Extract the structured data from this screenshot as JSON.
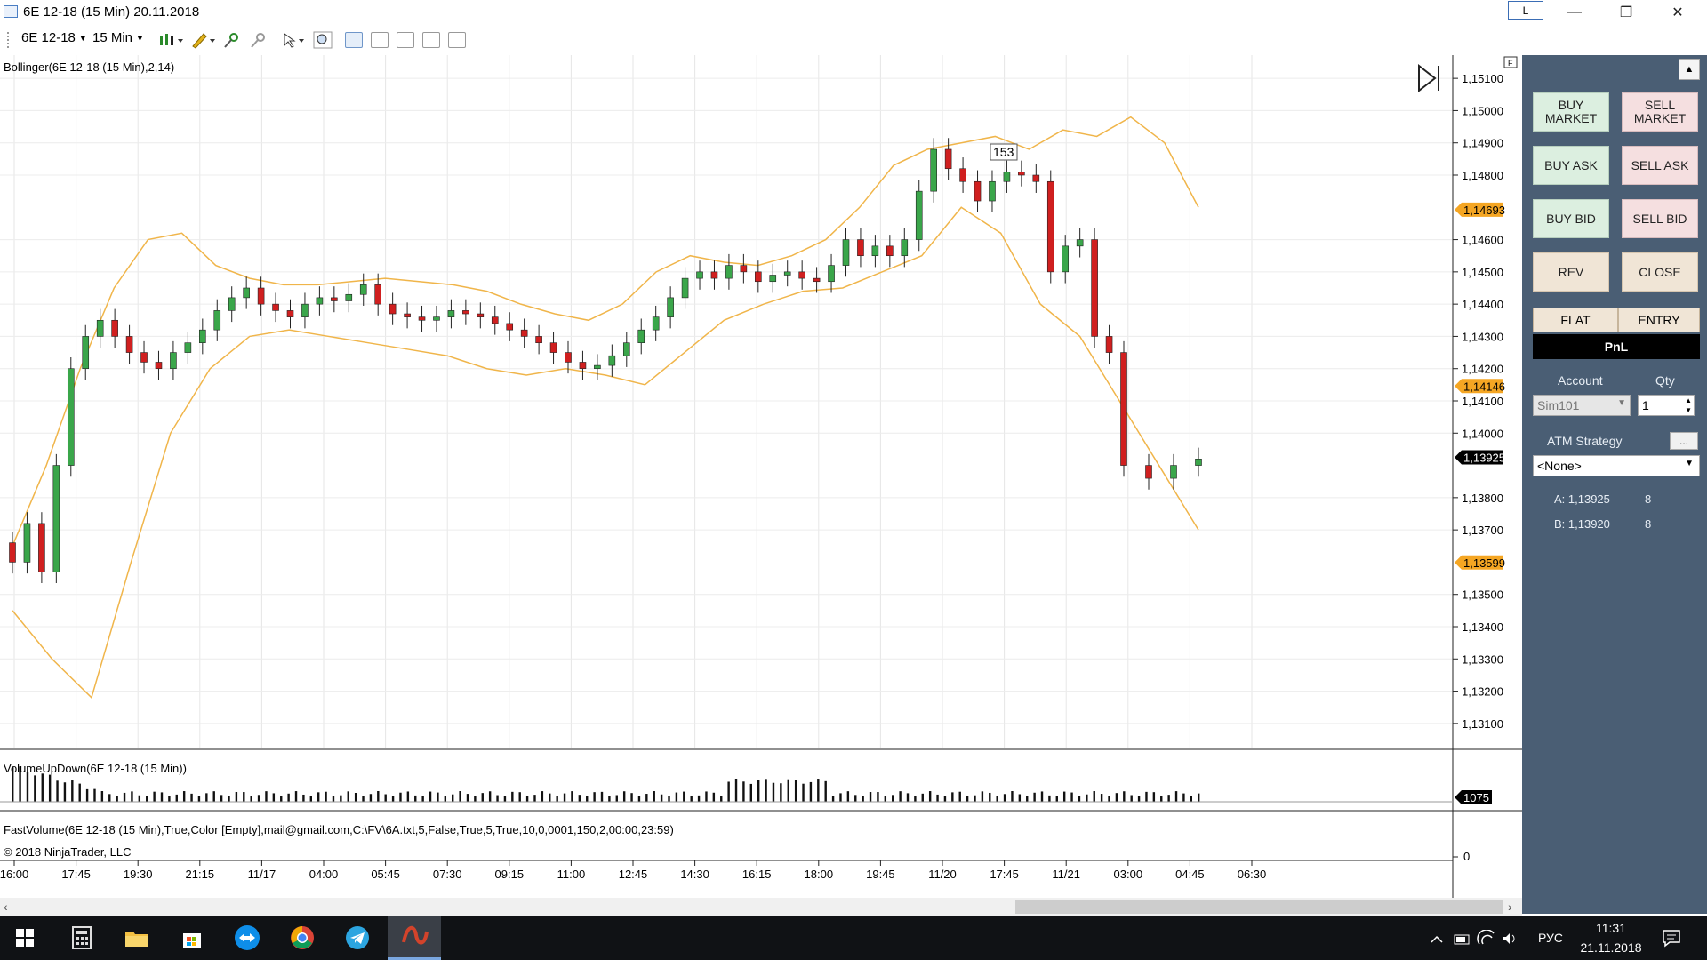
{
  "window": {
    "title": "6E 12-18 (15 Min)  20.11.2018",
    "layout_button": "L",
    "minimize": "—",
    "restore": "❐",
    "close": "✕"
  },
  "toolbar": {
    "instrument": "6E 12-18",
    "interval": "15 Min"
  },
  "chart": {
    "indicator_label": "Bollinger(6E 12-18 (15 Min),2,14)",
    "volume_label": "VolumeUpDown(6E 12-18 (15 Min))",
    "fastvolume_label": "FastVolume(6E 12-18 (15 Min),True,Color [Empty],mail@gmail.com,C:\\FV\\6A.txt,5,False,True,5,True,10,0,0001,150,2,00:00,23:59)",
    "copyright": "© 2018 NinjaTrader, LLC",
    "price_axis": {
      "ticks": [
        "1,15100",
        "1,15000",
        "1,14900",
        "1,14800",
        "1,14600",
        "1,14500",
        "1,14400",
        "1,14300",
        "1,14200",
        "1,14100",
        "1,14000",
        "1,13800",
        "1,13700",
        "1,13500",
        "1,13400",
        "1,13300",
        "1,13200",
        "1,13100"
      ],
      "min": 1.1305,
      "max": 1.1515
    },
    "price_markers": [
      {
        "label": "1,14693",
        "value": 1.14693,
        "color": "#f5a623"
      },
      {
        "label": "1,14146",
        "value": 1.14146,
        "color": "#f5a623"
      },
      {
        "label": "1,13925",
        "value": 1.13925,
        "color": "#000000"
      },
      {
        "label": "1,13599",
        "value": 1.13599,
        "color": "#f5a623"
      }
    ],
    "bar_count_label": "153",
    "volume_marker": "1075",
    "fastvolume_zero": "0",
    "time_axis": [
      "16:00",
      "17:45",
      "19:30",
      "21:15",
      "11/17",
      "04:00",
      "05:45",
      "07:30",
      "09:15",
      "11:00",
      "12:45",
      "14:30",
      "16:15",
      "18:00",
      "19:45",
      "11/20",
      "17:45",
      "11/21",
      "03:00",
      "04:45",
      "06:30"
    ]
  },
  "chart_data": {
    "type": "candlestick",
    "instrument": "6E 12-18",
    "interval": "15 Min",
    "x_ticks": [
      "16:00",
      "17:45",
      "19:30",
      "21:15",
      "11/17",
      "04:00",
      "05:45",
      "07:30",
      "09:15",
      "11:00",
      "12:45",
      "14:30",
      "16:15",
      "18:00",
      "19:45",
      "11/20",
      "17:45",
      "11/21",
      "03:00",
      "04:45",
      "06:30"
    ],
    "ylim": [
      1.1305,
      1.1515
    ],
    "close_series": [
      1.136,
      1.1372,
      1.1357,
      1.139,
      1.142,
      1.143,
      1.1435,
      1.143,
      1.1425,
      1.1422,
      1.142,
      1.1425,
      1.1428,
      1.1432,
      1.1438,
      1.1442,
      1.1445,
      1.144,
      1.1438,
      1.1436,
      1.144,
      1.1442,
      1.1441,
      1.1443,
      1.1446,
      1.144,
      1.1437,
      1.1436,
      1.1435,
      1.1436,
      1.1438,
      1.1437,
      1.1436,
      1.1434,
      1.1432,
      1.143,
      1.1428,
      1.1425,
      1.1422,
      1.142,
      1.1421,
      1.1424,
      1.1428,
      1.1432,
      1.1436,
      1.1442,
      1.1448,
      1.145,
      1.1448,
      1.1452,
      1.145,
      1.1447,
      1.1449,
      1.145,
      1.1448,
      1.1447,
      1.1452,
      1.146,
      1.1455,
      1.1458,
      1.1455,
      1.146,
      1.1475,
      1.1488,
      1.1482,
      1.1478,
      1.1472,
      1.1478,
      1.1481,
      1.148,
      1.1478,
      1.145,
      1.1458,
      1.146,
      1.143,
      1.1425,
      1.139,
      1.1386,
      1.139,
      1.1392
    ],
    "bollinger_upper": [
      1.1365,
      1.139,
      1.142,
      1.1445,
      1.146,
      1.1462,
      1.1452,
      1.1448,
      1.1446,
      1.1446,
      1.1447,
      1.1448,
      1.1447,
      1.1446,
      1.1444,
      1.144,
      1.1437,
      1.1435,
      1.144,
      1.145,
      1.1455,
      1.1453,
      1.1452,
      1.1455,
      1.146,
      1.147,
      1.1483,
      1.1488,
      1.149,
      1.1492,
      1.1488,
      1.1494,
      1.1492,
      1.1498,
      1.149,
      1.147
    ],
    "bollinger_lower": [
      1.1345,
      1.133,
      1.1318,
      1.136,
      1.14,
      1.142,
      1.143,
      1.1432,
      1.143,
      1.1428,
      1.1426,
      1.1424,
      1.142,
      1.1418,
      1.142,
      1.1418,
      1.1415,
      1.1425,
      1.1435,
      1.144,
      1.1444,
      1.1445,
      1.145,
      1.1455,
      1.147,
      1.1462,
      1.144,
      1.143,
      1.141,
      1.139,
      1.137
    ],
    "volume_label": "VolumeUpDown(6E 12-18 (15 Min))",
    "last_volume": 1075
  },
  "side_panel": {
    "buttons": [
      {
        "label": "BUY\nMARKET",
        "type": "buy"
      },
      {
        "label": "SELL\nMARKET",
        "type": "sell"
      },
      {
        "label": "BUY ASK",
        "type": "buy"
      },
      {
        "label": "SELL ASK",
        "type": "sell"
      },
      {
        "label": "BUY BID",
        "type": "buy"
      },
      {
        "label": "SELL BID",
        "type": "sell"
      },
      {
        "label": "REV",
        "type": "neutral"
      },
      {
        "label": "CLOSE",
        "type": "neutral"
      }
    ],
    "flat": "FLAT",
    "entry": "ENTRY",
    "pnl": "PnL",
    "account_label": "Account",
    "qty_label": "Qty",
    "account_value": "Sim101",
    "qty_value": "1",
    "atm_label": "ATM Strategy",
    "atm_more": "...",
    "atm_value": "<None>",
    "ask": {
      "label": "A: 1,13925",
      "size": "8"
    },
    "bid": {
      "label": "B: 1,13920",
      "size": "8"
    },
    "scroll_up": "▲"
  },
  "taskbar": {
    "lang": "РУС",
    "time": "11:31",
    "date": "21.11.2018"
  }
}
